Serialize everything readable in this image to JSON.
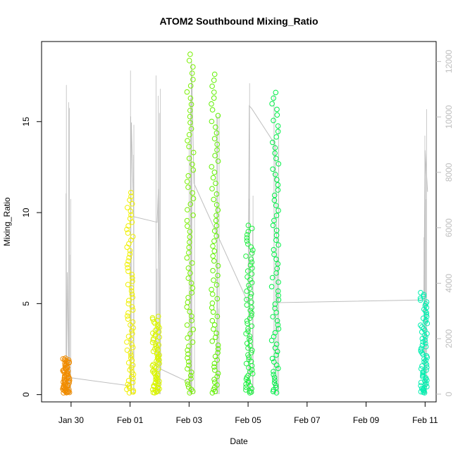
{
  "chart_data": {
    "type": "scatter",
    "title": "ATOM2 Southbound Mixing_Ratio",
    "xlabel": "Date",
    "ylabel": "Mixing_Ratio",
    "xlim": [
      "2018-01-29T00:00",
      "2018-02-11T09:00"
    ],
    "ylim_left": [
      -0.4,
      19.4
    ],
    "ylim_right": [
      -280,
      12720
    ],
    "x_ticks": [
      {
        "label": "Jan 30",
        "date": "2018-01-30"
      },
      {
        "label": "Feb 01",
        "date": "2018-02-01"
      },
      {
        "label": "Feb 03",
        "date": "2018-02-03"
      },
      {
        "label": "Feb 05",
        "date": "2018-02-05"
      },
      {
        "label": "Feb 07",
        "date": "2018-02-07"
      },
      {
        "label": "Feb 09",
        "date": "2018-02-09"
      },
      {
        "label": "Feb 11",
        "date": "2018-02-11"
      }
    ],
    "y_ticks_left": [
      0,
      5,
      10,
      15
    ],
    "y_ticks_right": [
      0,
      2000,
      4000,
      6000,
      8000,
      10000,
      12000
    ],
    "marker": "open-circle",
    "grid": false,
    "mixing_ratio_flights": [
      {
        "date": "2018-01-29T20:00",
        "min": 0.1,
        "max": 2.0,
        "color": "#f08c00"
      },
      {
        "date": "2018-02-01T00:00",
        "min": 0.1,
        "max": 11.1,
        "color": "#f0f000"
      },
      {
        "date": "2018-02-01T21:00",
        "min": 0.1,
        "max": 4.3,
        "color": "#daf500"
      },
      {
        "date": "2018-02-03T01:00",
        "min": 0.1,
        "max": 18.7,
        "color": "#78f000"
      },
      {
        "date": "2018-02-03T21:00",
        "min": 0.1,
        "max": 17.6,
        "color": "#60f000"
      },
      {
        "date": "2018-02-05T01:00",
        "min": 0.1,
        "max": 9.3,
        "color": "#1ff040"
      },
      {
        "date": "2018-02-05T22:00",
        "min": 0.1,
        "max": 16.6,
        "color": "#00f048"
      },
      {
        "date": "2018-02-10T23:00",
        "min": 0.1,
        "max": 5.6,
        "color": "#00f0b0"
      }
    ],
    "altitude_series": {
      "name": "",
      "color": "#bebebe",
      "points": [
        {
          "date": "2018-01-29T20:00",
          "value": 200
        },
        {
          "date": "2018-01-29T21:00",
          "value": 4400
        },
        {
          "date": "2018-01-29T22:00",
          "value": 600
        },
        {
          "date": "2018-02-01T00:00",
          "value": 300
        },
        {
          "date": "2018-02-01T01:00",
          "value": 9800
        },
        {
          "date": "2018-02-01T03:00",
          "value": 6400
        },
        {
          "date": "2018-02-01T22:00",
          "value": 6200
        },
        {
          "date": "2018-02-01T23:00",
          "value": 7400
        },
        {
          "date": "2018-02-02T01:00",
          "value": 900
        },
        {
          "date": "2018-02-03T01:00",
          "value": 400
        },
        {
          "date": "2018-02-03T02:00",
          "value": 12000
        },
        {
          "date": "2018-02-03T04:00",
          "value": 7600
        },
        {
          "date": "2018-02-05T00:00",
          "value": 3300
        },
        {
          "date": "2018-02-05T01:00",
          "value": 10400
        },
        {
          "date": "2018-02-05T03:00",
          "value": 10300
        },
        {
          "date": "2018-02-05T22:00",
          "value": 9000
        },
        {
          "date": "2018-02-06T00:00",
          "value": 3300
        },
        {
          "date": "2018-02-10T23:00",
          "value": 3400
        },
        {
          "date": "2018-02-11T00:00",
          "value": 8800
        },
        {
          "date": "2018-02-11T02:00",
          "value": 7300
        }
      ]
    }
  }
}
